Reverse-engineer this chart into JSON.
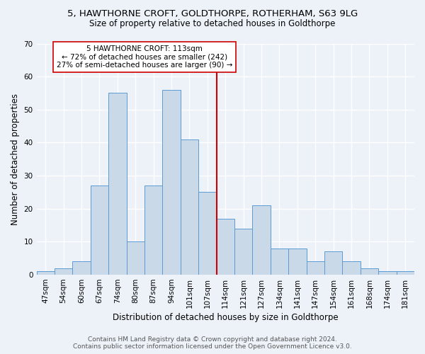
{
  "title_line1": "5, HAWTHORNE CROFT, GOLDTHORPE, ROTHERHAM, S63 9LG",
  "title_line2": "Size of property relative to detached houses in Goldthorpe",
  "xlabel": "Distribution of detached houses by size in Goldthorpe",
  "ylabel": "Number of detached properties",
  "footer_line1": "Contains HM Land Registry data © Crown copyright and database right 2024.",
  "footer_line2": "Contains public sector information licensed under the Open Government Licence v3.0.",
  "categories": [
    "47sqm",
    "54sqm",
    "60sqm",
    "67sqm",
    "74sqm",
    "80sqm",
    "87sqm",
    "94sqm",
    "101sqm",
    "107sqm",
    "114sqm",
    "121sqm",
    "127sqm",
    "134sqm",
    "141sqm",
    "147sqm",
    "154sqm",
    "161sqm",
    "168sqm",
    "174sqm",
    "181sqm"
  ],
  "values": [
    1,
    2,
    4,
    27,
    55,
    10,
    27,
    56,
    41,
    25,
    17,
    14,
    21,
    8,
    8,
    4,
    7,
    4,
    2,
    1,
    1
  ],
  "bar_color": "#c9d9e8",
  "bar_edge_color": "#5b9bd5",
  "reference_line_x": 10.0,
  "reference_line_color": "#cc0000",
  "annotation_text": "5 HAWTHORNE CROFT: 113sqm\n← 72% of detached houses are smaller (242)\n27% of semi-detached houses are larger (90) →",
  "annotation_box_color": "white",
  "annotation_box_edge": "#cc0000",
  "ylim": [
    0,
    70
  ],
  "yticks": [
    0,
    10,
    20,
    30,
    40,
    50,
    60,
    70
  ],
  "background_color": "#edf2f9",
  "plot_bg_color": "#edf2f9",
  "grid_color": "white",
  "title_fontsize": 9.5,
  "subtitle_fontsize": 8.5,
  "axis_label_fontsize": 8.5,
  "tick_fontsize": 7.5,
  "annotation_fontsize": 7.5,
  "footer_fontsize": 6.5
}
